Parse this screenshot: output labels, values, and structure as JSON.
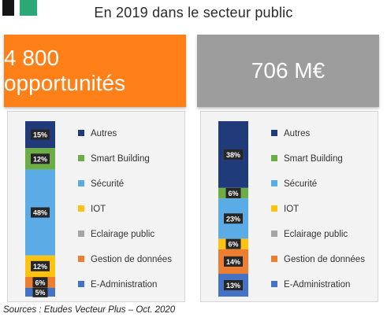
{
  "title": "En 2019 dans le secteur public",
  "banner_left": "4 800 opportunités",
  "banner_right": "706 M€",
  "source": "Sources : Etudes Vecteur Plus – Oct. 2020",
  "colors": {
    "logo_black": "#151515",
    "logo_green": "#2aa876",
    "banner_left": "#ff8018",
    "banner_right": "#9d9d9d"
  },
  "chart_data": [
    {
      "type": "bar",
      "stacked": true,
      "title": "",
      "categories": [
        "4 800 opportunités"
      ],
      "series": [
        {
          "name": "Autres",
          "color": "#203a7a",
          "values": [
            15
          ],
          "label": "15%"
        },
        {
          "name": "Smart Building",
          "color": "#6cae45",
          "values": [
            12
          ],
          "label": "12%"
        },
        {
          "name": "Sécurité",
          "color": "#5aabe6",
          "values": [
            48
          ],
          "label": "48%"
        },
        {
          "name": "IOT",
          "color": "#ffc20e",
          "values": [
            12
          ],
          "label": "12%"
        },
        {
          "name": "Eclairage public",
          "color": "#a5a5a5",
          "values": [
            0
          ],
          "label": ""
        },
        {
          "name": "Gestion de données",
          "color": "#ed7d31",
          "values": [
            6
          ],
          "label": "6%"
        },
        {
          "name": "E-Administration",
          "color": "#4472c4",
          "values": [
            5
          ],
          "label": "5%"
        }
      ],
      "legend": "right"
    },
    {
      "type": "bar",
      "stacked": true,
      "title": "",
      "categories": [
        "706 M€"
      ],
      "series": [
        {
          "name": "Autres",
          "color": "#203a7a",
          "values": [
            38
          ],
          "label": "38%"
        },
        {
          "name": "Smart Building",
          "color": "#6cae45",
          "values": [
            6
          ],
          "label": "6%"
        },
        {
          "name": "Sécurité",
          "color": "#5aabe6",
          "values": [
            23
          ],
          "label": "23%"
        },
        {
          "name": "IOT",
          "color": "#ffc20e",
          "values": [
            6
          ],
          "label": "6%"
        },
        {
          "name": "Eclairage public",
          "color": "#a5a5a5",
          "values": [
            0
          ],
          "label": ""
        },
        {
          "name": "Gestion de données",
          "color": "#ed7d31",
          "values": [
            14
          ],
          "label": "14%"
        },
        {
          "name": "E-Administration",
          "color": "#4472c4",
          "values": [
            13
          ],
          "label": "13%"
        }
      ],
      "legend": "right"
    }
  ]
}
